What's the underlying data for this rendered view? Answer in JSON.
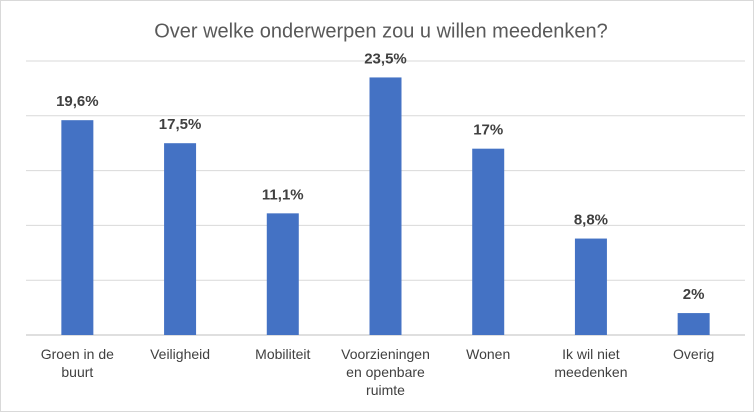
{
  "chart_data": {
    "type": "bar",
    "title": "Over welke onderwerpen zou u willen meedenken?",
    "categories": [
      "Groen in de buurt",
      "Veiligheid",
      "Mobiliteit",
      "Voorzieningen en openbare ruimte",
      "Wonen",
      "Ik wil niet meedenken",
      "Overig"
    ],
    "values": [
      19.6,
      17.5,
      11.1,
      23.5,
      17,
      8.8,
      2
    ],
    "value_labels": [
      "19,6%",
      "17,5%",
      "11,1%",
      "23,5%",
      "17%",
      "8,8%",
      "2%"
    ],
    "color": "#4472c4",
    "ylim": [
      0,
      25
    ],
    "yticks": [
      0,
      5,
      10,
      15,
      20,
      25
    ],
    "grid": true
  }
}
